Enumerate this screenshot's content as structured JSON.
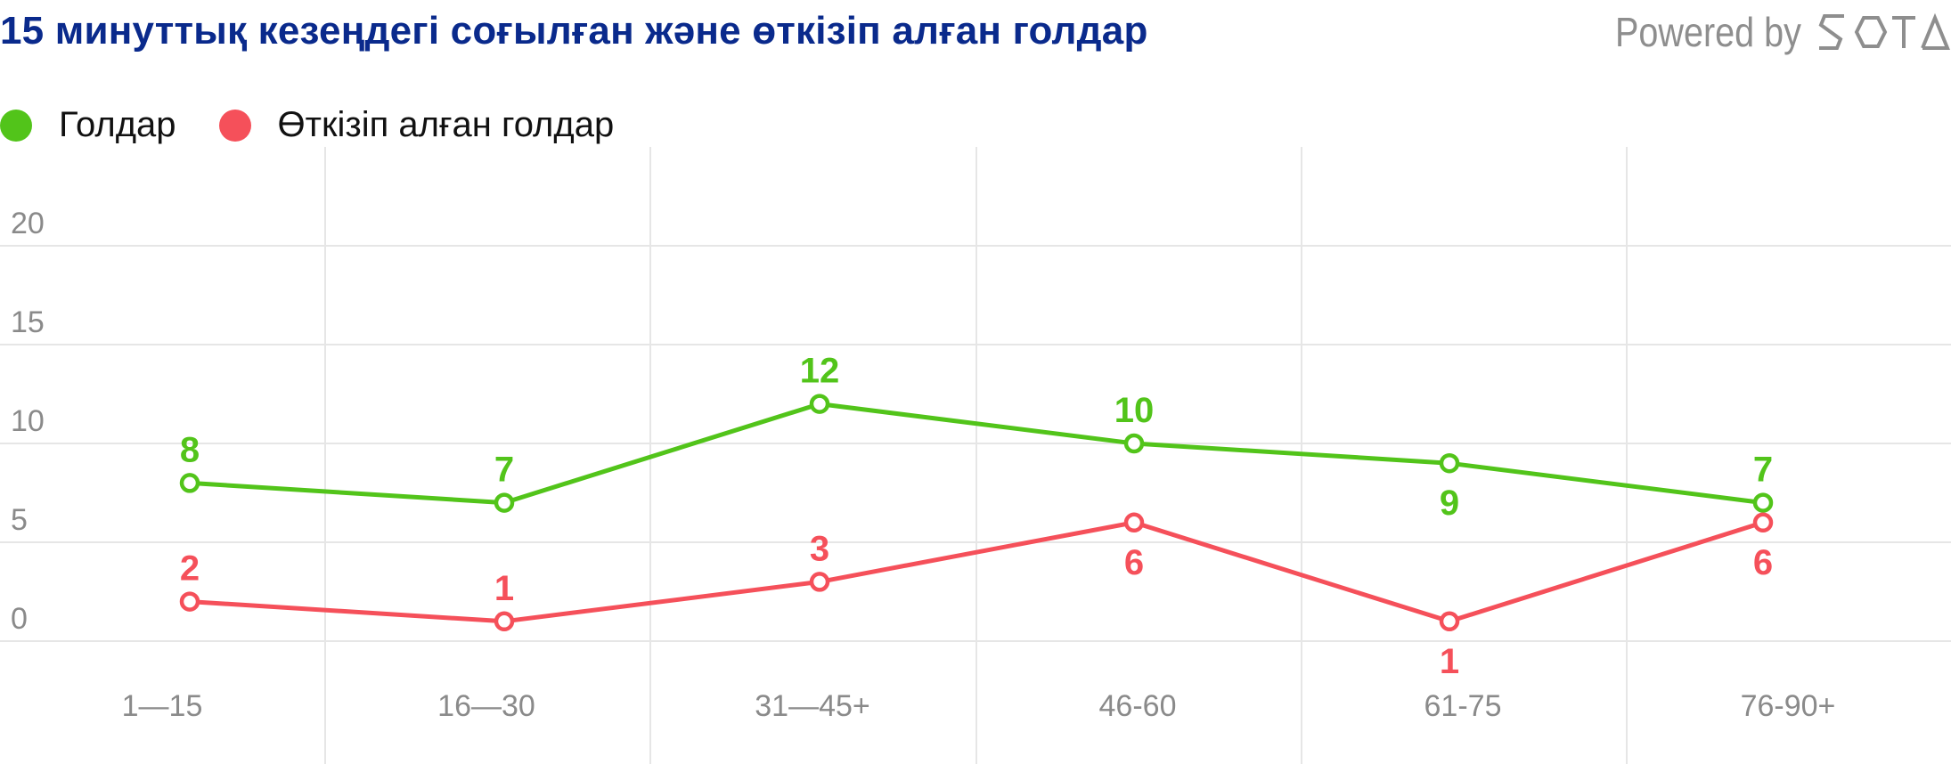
{
  "title": "15 минуттық кезеңдегі соғылған және өткізіп алған голдар",
  "brand": {
    "powered_by": "Powered by",
    "logo_text": "SOTA"
  },
  "colors": {
    "title": "#0a2a8c",
    "goals": "#52c41a",
    "conceded": "#f5505a",
    "grid": "#e6e6e6",
    "tick": "#8a8a8a"
  },
  "chart_data": {
    "type": "line",
    "title": "15 минуттық кезеңдегі соғылған және өткізіп алған голдар",
    "categories": [
      "1—15",
      "16—30",
      "31—45+",
      "46-60",
      "61-75",
      "76-90+"
    ],
    "series": [
      {
        "name": "Голдар",
        "color": "#52c41a",
        "values": [
          8,
          7,
          12,
          10,
          9,
          7
        ]
      },
      {
        "name": "Өткізіп алған голдар",
        "color": "#f5505a",
        "values": [
          2,
          1,
          3,
          6,
          1,
          6
        ]
      }
    ],
    "yticks": [
      0,
      5,
      10,
      15,
      20
    ],
    "ylim": [
      0,
      20
    ],
    "legend_position": "top-left",
    "grid": true
  }
}
